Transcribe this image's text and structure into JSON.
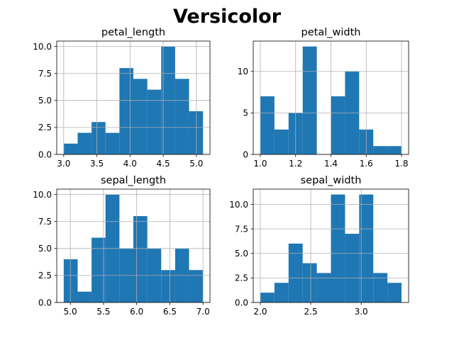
{
  "figure_title": "Versicolor",
  "colors": {
    "bar": "#1f77b4",
    "grid": "#b0b0b0",
    "axis": "#000000"
  },
  "chart_data": [
    {
      "type": "bar",
      "title": "petal_length",
      "grid": true,
      "bin_edges": [
        3.0,
        3.21,
        3.42,
        3.63,
        3.84,
        4.05,
        4.26,
        4.47,
        4.68,
        4.89,
        5.1
      ],
      "values": [
        1,
        2,
        3,
        2,
        8,
        7,
        6,
        10,
        7,
        4
      ],
      "xlim": [
        2.895,
        5.205
      ],
      "ylim": [
        0,
        10.5
      ],
      "xticks": [
        3.0,
        3.5,
        4.0,
        4.5,
        5.0
      ],
      "xtick_labels": [
        "3.0",
        "3.5",
        "4.0",
        "4.5",
        "5.0"
      ],
      "yticks": [
        0,
        2.5,
        5.0,
        7.5,
        10.0
      ],
      "ytick_labels": [
        "0.0",
        "2.5",
        "5.0",
        "7.5",
        "10.0"
      ]
    },
    {
      "type": "bar",
      "title": "petal_width",
      "grid": true,
      "bin_edges": [
        1.0,
        1.08,
        1.16,
        1.24,
        1.32,
        1.4,
        1.48,
        1.56,
        1.64,
        1.72,
        1.8
      ],
      "values": [
        7,
        3,
        5,
        13,
        0,
        7,
        10,
        3,
        1,
        1
      ],
      "xlim": [
        0.96,
        1.84
      ],
      "ylim": [
        0,
        13.65
      ],
      "xticks": [
        1.0,
        1.2,
        1.4,
        1.6,
        1.8
      ],
      "xtick_labels": [
        "1.0",
        "1.2",
        "1.4",
        "1.6",
        "1.8"
      ],
      "yticks": [
        0,
        5,
        10
      ],
      "ytick_labels": [
        "0",
        "5",
        "10"
      ]
    },
    {
      "type": "bar",
      "title": "sepal_length",
      "grid": true,
      "bin_edges": [
        4.9,
        5.11,
        5.32,
        5.53,
        5.74,
        5.95,
        6.16,
        6.37,
        6.58,
        6.79,
        7.0
      ],
      "values": [
        4,
        1,
        6,
        10,
        5,
        8,
        5,
        3,
        5,
        3
      ],
      "xlim": [
        4.795,
        7.105
      ],
      "ylim": [
        0,
        10.5
      ],
      "xticks": [
        5.0,
        5.5,
        6.0,
        6.5,
        7.0
      ],
      "xtick_labels": [
        "5.0",
        "5.5",
        "6.0",
        "6.5",
        "7.0"
      ],
      "yticks": [
        0,
        2.5,
        5.0,
        7.5,
        10.0
      ],
      "ytick_labels": [
        "0.0",
        "2.5",
        "5.0",
        "7.5",
        "10.0"
      ]
    },
    {
      "type": "bar",
      "title": "sepal_width",
      "grid": true,
      "bin_edges": [
        2.0,
        2.14,
        2.28,
        2.42,
        2.56,
        2.7,
        2.84,
        2.98,
        3.12,
        3.26,
        3.4
      ],
      "values": [
        1,
        2,
        6,
        4,
        3,
        11,
        7,
        11,
        3,
        2
      ],
      "xlim": [
        1.93,
        3.47
      ],
      "ylim": [
        0,
        11.55
      ],
      "xticks": [
        2.0,
        2.5,
        3.0
      ],
      "xtick_labels": [
        "2.0",
        "2.5",
        "3.0"
      ],
      "yticks": [
        0,
        2.5,
        5.0,
        7.5,
        10.0
      ],
      "ytick_labels": [
        "0.0",
        "2.5",
        "5.0",
        "7.5",
        "10.0"
      ]
    }
  ]
}
